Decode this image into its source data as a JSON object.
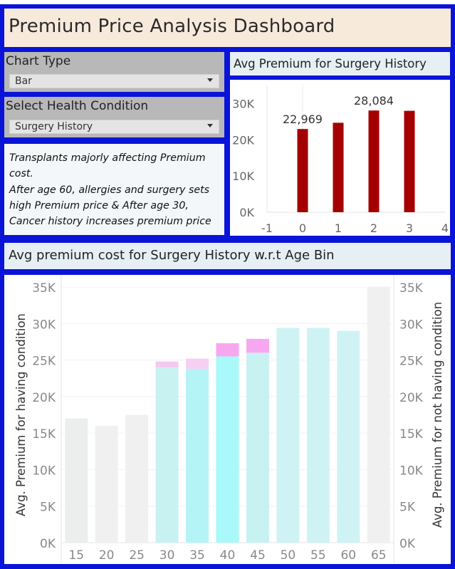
{
  "dashboard": {
    "title": "Premium Price Analysis Dashboard",
    "chart_type_label": "Chart Type",
    "chart_type_value": "Bar",
    "condition_label": "Select Health Condition",
    "condition_value": "Surgery History",
    "note": "Transplants majorly affecting Premium cost.\n After age 60, allergies and surgery sets high Premium price & After age 30, Cancer history increases premium price",
    "top_chart_title": "Avg Premium for Surgery History",
    "bottom_chart_title": "Avg premium cost for Surgery History w.r.t Age Bin"
  },
  "chart_data": [
    {
      "type": "bar",
      "title": "Avg Premium for Surgery History",
      "x": [
        0,
        1,
        2,
        3
      ],
      "values": [
        22969,
        24700,
        28084,
        28000
      ],
      "data_labels": [
        "22,969",
        "",
        "28,084",
        ""
      ],
      "x_ticks": [
        "-1",
        "0",
        "1",
        "2",
        "3",
        "4"
      ],
      "y_ticks": [
        "0K",
        "10K",
        "20K",
        "30K"
      ],
      "xlim": [
        -1,
        4
      ],
      "ylim": [
        0,
        35000
      ],
      "bar_color": "#a50000"
    },
    {
      "type": "bar",
      "title": "Avg premium cost for Surgery History w.r.t Age Bin",
      "categories": [
        "15",
        "20",
        "25",
        "30",
        "35",
        "40",
        "45",
        "50",
        "55",
        "60",
        "65"
      ],
      "series": [
        {
          "values": [
            17000,
            16000,
            17500,
            24000,
            23800,
            25500,
            26000,
            29400,
            29400,
            29000,
            35000
          ]
        },
        {
          "values": [
            null,
            null,
            null,
            24800,
            25200,
            27300,
            27900,
            null,
            null,
            null,
            null
          ]
        }
      ],
      "ylabel": "Avg. Premium for having condition",
      "ylabel_right": "Avg. Premium for not having condition",
      "y_ticks": [
        "0K",
        "5K",
        "10K",
        "15K",
        "20K",
        "25K",
        "30K",
        "35K"
      ],
      "ylim": [
        0,
        35000
      ],
      "bar_colors": [
        "#eceeee",
        "#f0f0f0",
        "#c8f2f2",
        "#b4f4f6",
        "#a9f8fa",
        "#cff3f4",
        "#f7a7f0",
        "#f5c8f0"
      ]
    }
  ]
}
